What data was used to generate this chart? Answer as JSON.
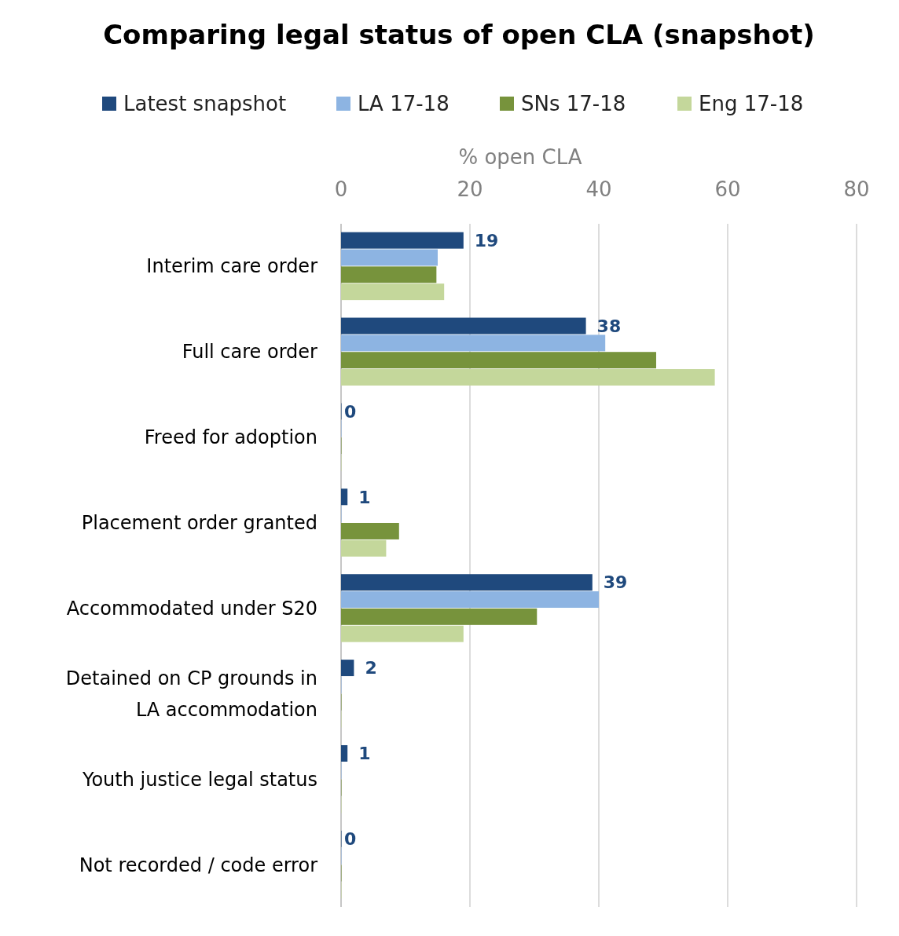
{
  "chart_data": {
    "type": "bar",
    "orientation": "horizontal",
    "title": "Comparing legal status of open CLA (snapshot)",
    "xlabel": "% open CLA",
    "categories": [
      "Interim care order",
      "Full care order",
      "Freed for adoption",
      "Placement order granted",
      "Accommodated under S20",
      "Detained on CP grounds in LA accommodation",
      "Youth justice legal status",
      "Not recorded / code error"
    ],
    "series": [
      {
        "name": "Latest snapshot",
        "color": "#1f497d",
        "values": [
          19,
          38,
          0,
          1,
          39,
          2,
          1,
          0
        ],
        "value_labels": [
          "19",
          "38",
          "0",
          "1",
          "39",
          "2",
          "1",
          "0"
        ]
      },
      {
        "name": "LA 17-18",
        "color": "#8db4e2",
        "values": [
          15,
          41,
          0,
          0,
          40,
          0,
          0,
          0
        ]
      },
      {
        "name": "SNs 17-18",
        "color": "#77933c",
        "values": [
          14.8,
          48.9,
          0,
          9,
          30.4,
          0,
          0,
          0
        ]
      },
      {
        "name": "Eng 17-18",
        "color": "#c4d79b",
        "values": [
          16,
          58,
          0,
          7,
          19,
          0,
          0,
          0
        ]
      }
    ],
    "xlim": [
      0,
      80
    ],
    "xticks": [
      0,
      20,
      40,
      60,
      80
    ],
    "grid": "x",
    "legend": "top"
  }
}
